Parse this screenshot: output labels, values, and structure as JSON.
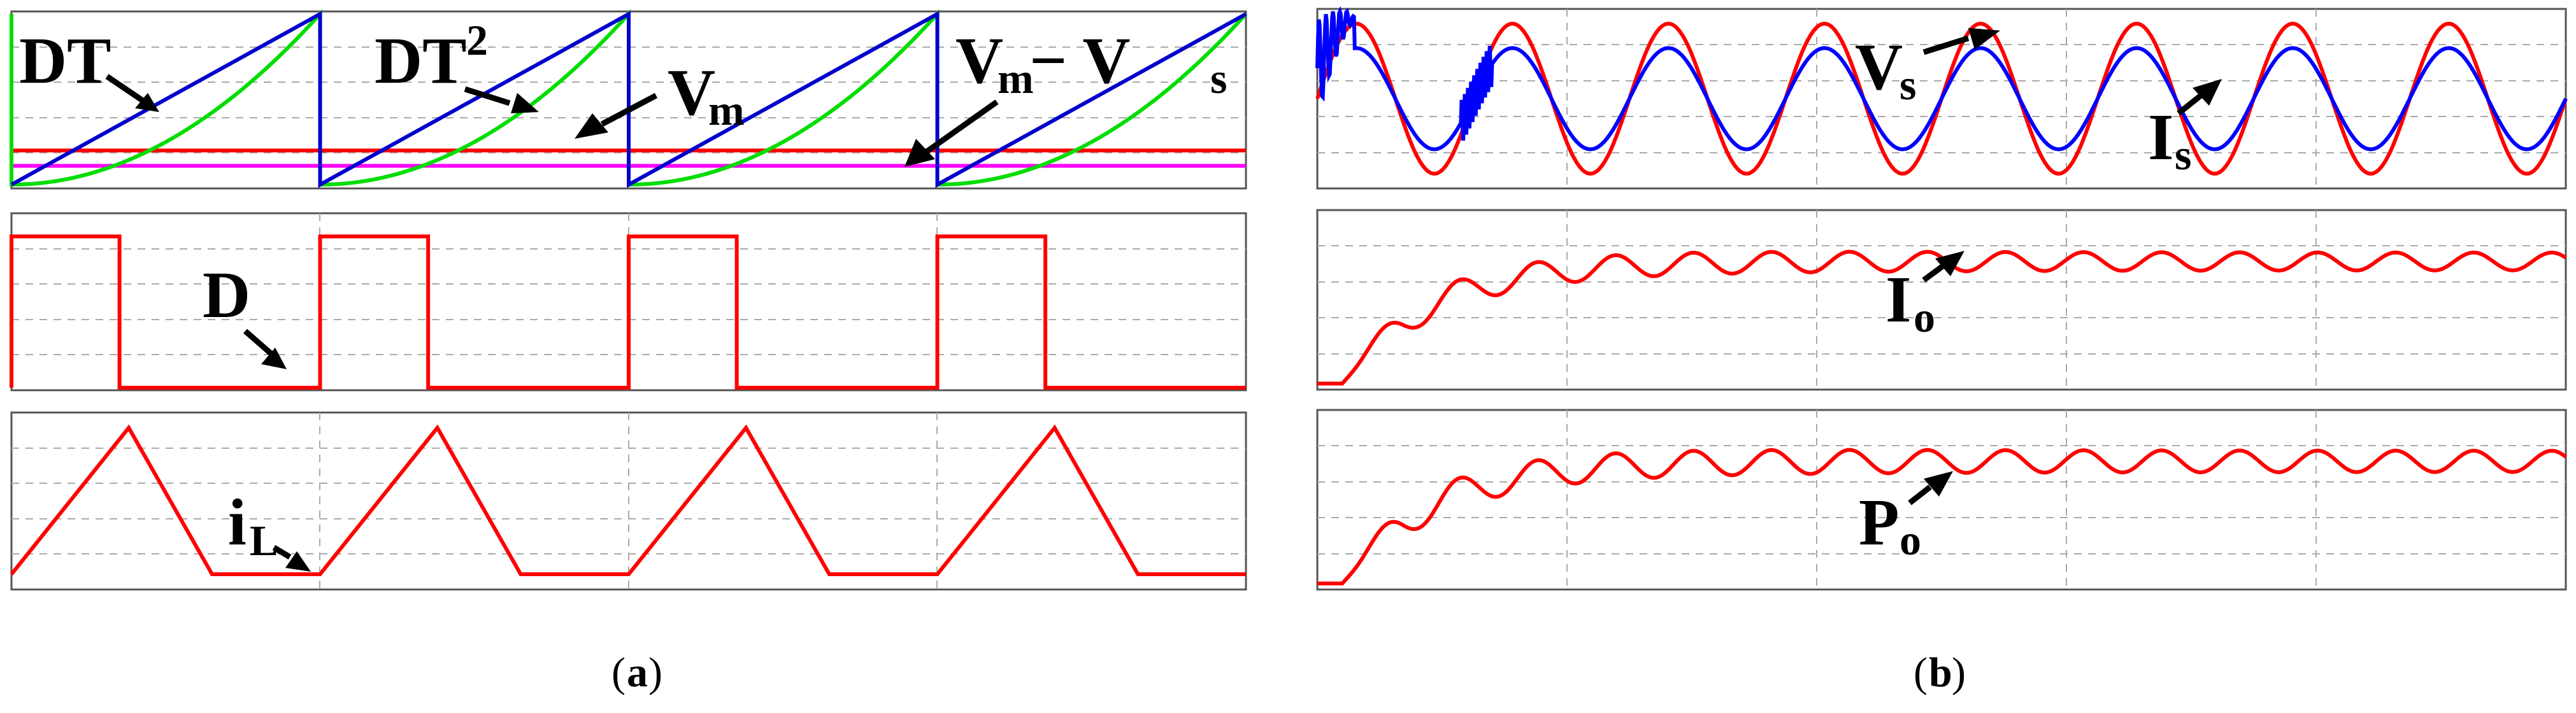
{
  "panel_a": {
    "caption_prefix": "(",
    "caption_letter": "a",
    "caption_suffix": ")",
    "charts": [
      {
        "type": "line",
        "xlim": [
          0,
          4
        ],
        "ylim": [
          0,
          1
        ],
        "grid": true,
        "annotations": [
          "DT",
          "DT",
          "2",
          "V",
          "m",
          "V",
          "m",
          " − V",
          "s"
        ],
        "series": [
          {
            "id": "DT",
            "color": "#0000cc",
            "kind": "sawtooth_linear",
            "periods": 4,
            "min": 0.0,
            "max": 1.0
          },
          {
            "id": "DT2",
            "color": "#00dd00",
            "kind": "sawtooth_square",
            "periods": 4,
            "min": 0.0,
            "max": 1.0
          },
          {
            "id": "Vm",
            "color": "#ff0000",
            "kind": "constant",
            "value": 0.2
          },
          {
            "id": "Vm-Vs",
            "color": "#ff00ff",
            "kind": "constant",
            "value": 0.11
          }
        ]
      },
      {
        "type": "line",
        "xlim": [
          0,
          4
        ],
        "ylim": [
          0,
          1
        ],
        "grid": true,
        "annotations": [
          "D"
        ],
        "series": [
          {
            "id": "D",
            "color": "#ff0000",
            "kind": "pulse",
            "periods": 4,
            "duty": 0.35,
            "low": 0.0,
            "high": 0.88
          }
        ]
      },
      {
        "type": "line",
        "xlim": [
          0,
          4
        ],
        "ylim": [
          0,
          1
        ],
        "grid": true,
        "annotations": [
          "i",
          "L"
        ],
        "series": [
          {
            "id": "iL",
            "color": "#ff0000",
            "kind": "triangle",
            "periods": 4,
            "rise": 0.38,
            "fall": 0.27,
            "low": 0.0,
            "high": 0.92
          }
        ]
      }
    ]
  },
  "panel_b": {
    "caption_prefix": "(",
    "caption_letter": "b",
    "caption_suffix": ")",
    "charts": [
      {
        "type": "line",
        "xlim": [
          0,
          1
        ],
        "ylim": [
          -1,
          1
        ],
        "grid": true,
        "annotations": [
          "V",
          "s",
          "I",
          "s"
        ],
        "series": [
          {
            "id": "Vs",
            "color": "#ff0000",
            "kind": "sine",
            "cycles": 8,
            "amplitude": 0.86
          },
          {
            "id": "Is",
            "color": "#0000ff",
            "kind": "sine_response",
            "cycles": 8,
            "amplitude": 0.58
          }
        ]
      },
      {
        "type": "line",
        "xlim": [
          0,
          1
        ],
        "ylim": [
          0,
          1
        ],
        "grid": true,
        "annotations": [
          "I",
          "o"
        ],
        "series": [
          {
            "id": "Io",
            "color": "#ff0000",
            "kind": "step_ripple",
            "start": 0.02,
            "level": 0.72,
            "ripple": 0.05,
            "cycles": 16
          }
        ]
      },
      {
        "type": "line",
        "xlim": [
          0,
          1
        ],
        "ylim": [
          0,
          1
        ],
        "grid": true,
        "annotations": [
          "P",
          "o"
        ],
        "series": [
          {
            "id": "Po",
            "color": "#ff0000",
            "kind": "step_ripple",
            "start": 0.02,
            "level": 0.72,
            "ripple": 0.06,
            "cycles": 16
          }
        ]
      }
    ]
  }
}
